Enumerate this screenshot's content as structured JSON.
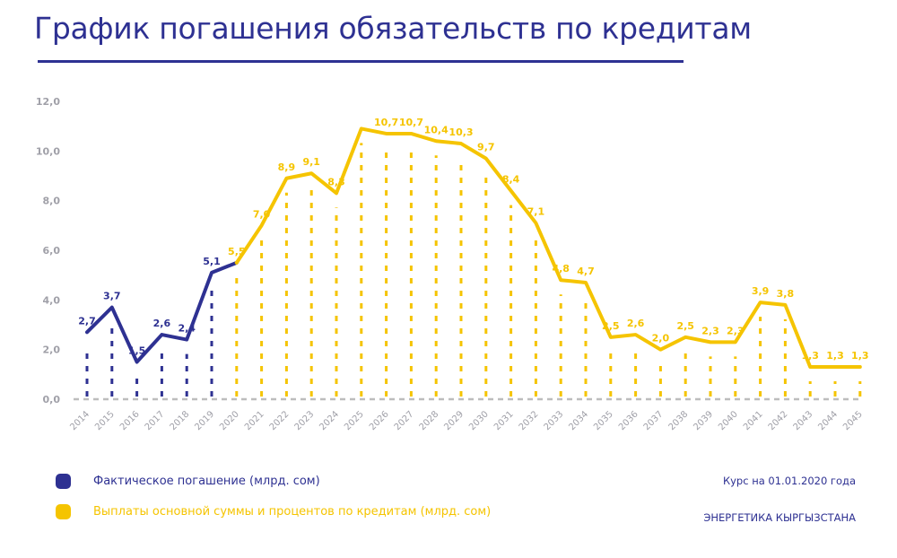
{
  "title": "График погашения обязательств по кредитам",
  "colors": {
    "actual": "#2e3192",
    "planned": "#f5c400",
    "axis": "#a0a0a8",
    "baseline": "#bdbdbd"
  },
  "legend": {
    "actual": "Фактическое погашение (млрд. сом)",
    "planned": "Выплаты основной суммы и процентов по кредитам (млрд. сом)"
  },
  "notes": {
    "rate": "Курс на 01.01.2020 года",
    "source": "ЭНЕРГЕТИКА КЫРГЫЗСТАНА"
  },
  "chart_data": {
    "type": "line",
    "title": "График погашения обязательств по кредитам",
    "xlabel": "",
    "ylabel": "",
    "ylim": [
      0,
      12
    ],
    "yticks": [
      "0,0",
      "2,0",
      "4,0",
      "6,0",
      "8,0",
      "10,0",
      "12,0"
    ],
    "categories": [
      "2014",
      "2015",
      "2016",
      "2017",
      "2018",
      "2019",
      "2020",
      "2021",
      "2022",
      "2023",
      "2024",
      "2025",
      "2026",
      "2027",
      "2028",
      "2029",
      "2030",
      "2031",
      "2032",
      "2033",
      "2034",
      "2035",
      "2036",
      "2037",
      "2038",
      "2039",
      "2040",
      "2041",
      "2042",
      "2043",
      "2044",
      "2045"
    ],
    "series": [
      {
        "name": "Фактическое погашение (млрд. сом)",
        "color": "#2e3192",
        "values": [
          2.7,
          3.7,
          1.5,
          2.6,
          2.4,
          5.1,
          null,
          null,
          null,
          null,
          null,
          null,
          null,
          null,
          null,
          null,
          null,
          null,
          null,
          null,
          null,
          null,
          null,
          null,
          null,
          null,
          null,
          null,
          null,
          null,
          null,
          null
        ],
        "labels": [
          "2,7",
          "3,7",
          "1,5",
          "2,6",
          "2,4",
          "5,1",
          null,
          null,
          null,
          null,
          null,
          null,
          null,
          null,
          null,
          null,
          null,
          null,
          null,
          null,
          null,
          null,
          null,
          null,
          null,
          null,
          null,
          null,
          null,
          null,
          null,
          null
        ]
      },
      {
        "name": "Выплаты основной суммы и процентов по кредитам (млрд. сом)",
        "color": "#f5c400",
        "values": [
          null,
          null,
          null,
          null,
          null,
          null,
          5.5,
          7.0,
          8.9,
          9.1,
          8.3,
          10.9,
          10.7,
          10.7,
          10.4,
          10.3,
          9.7,
          8.4,
          7.1,
          4.8,
          4.7,
          2.5,
          2.6,
          2.0,
          2.5,
          2.3,
          2.3,
          3.9,
          3.8,
          1.3,
          1.3,
          1.3
        ],
        "labels": [
          null,
          null,
          null,
          null,
          null,
          null,
          "5,5",
          "7,0",
          "8,9",
          "9,1",
          "8,3",
          null,
          "10,7",
          "10,7",
          "10,4",
          "10,3",
          "9,7",
          "8,4",
          "7,1",
          "4,8",
          "4,7",
          "2,5",
          "2,6",
          "2,0",
          "2,5",
          "2,3",
          "2,3",
          "3,9",
          "3,8",
          "1,3",
          "1,3",
          "1,3"
        ]
      }
    ],
    "grid": false,
    "legend_position": "bottom-left"
  }
}
